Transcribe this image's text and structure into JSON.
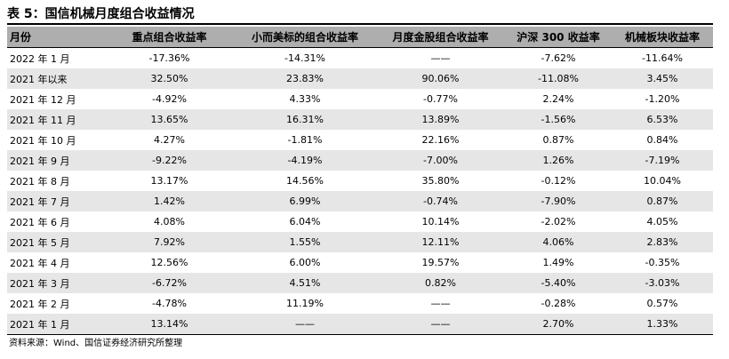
{
  "title": "表 5：国信机械月度组合收益情况",
  "columns": [
    "月份",
    "重点组合收益率",
    "小而美标的组合收益率",
    "月度金股组合收益率",
    "沪深 300 收益率",
    "机械板块收益率"
  ],
  "rows": [
    [
      "2022 年 1 月",
      "-17.36%",
      "-14.31%",
      "——",
      "-7.62%",
      "-11.64%"
    ],
    [
      "2021 年以来",
      "32.50%",
      "23.83%",
      "90.06%",
      "-11.08%",
      "3.45%"
    ],
    [
      "2021 年 12 月",
      "-4.92%",
      "4.33%",
      "-0.77%",
      "2.24%",
      "-1.20%"
    ],
    [
      "2021 年 11 月",
      "13.65%",
      "16.31%",
      "13.89%",
      "-1.56%",
      "6.53%"
    ],
    [
      "2021 年 10 月",
      "4.27%",
      "-1.81%",
      "22.16%",
      "0.87%",
      "0.84%"
    ],
    [
      "2021 年 9 月",
      "-9.22%",
      "-4.19%",
      "-7.00%",
      "1.26%",
      "-7.19%"
    ],
    [
      "2021 年 8 月",
      "13.17%",
      "14.56%",
      "35.80%",
      "-0.12%",
      "10.04%"
    ],
    [
      "2021 年 7 月",
      "1.42%",
      "6.99%",
      "-0.74%",
      "-7.90%",
      "0.87%"
    ],
    [
      "2021 年 6 月",
      "4.08%",
      "6.04%",
      "10.14%",
      "-2.02%",
      "4.05%"
    ],
    [
      "2021 年 5 月",
      "7.92%",
      "1.55%",
      "12.11%",
      "4.06%",
      "2.83%"
    ],
    [
      "2021 年 4 月",
      "12.56%",
      "6.00%",
      "19.57%",
      "1.49%",
      "-0.35%"
    ],
    [
      "2021 年 3 月",
      "-6.72%",
      "4.51%",
      "0.82%",
      "-5.40%",
      "-3.03%"
    ],
    [
      "2021 年 2 月",
      "-4.78%",
      "11.19%",
      "——",
      "-0.28%",
      "0.57%"
    ],
    [
      "2021 年 1 月",
      "13.14%",
      "——",
      "——",
      "2.70%",
      "1.33%"
    ]
  ],
  "source": "资料来源：Wind、国信证券经济研究所整理"
}
